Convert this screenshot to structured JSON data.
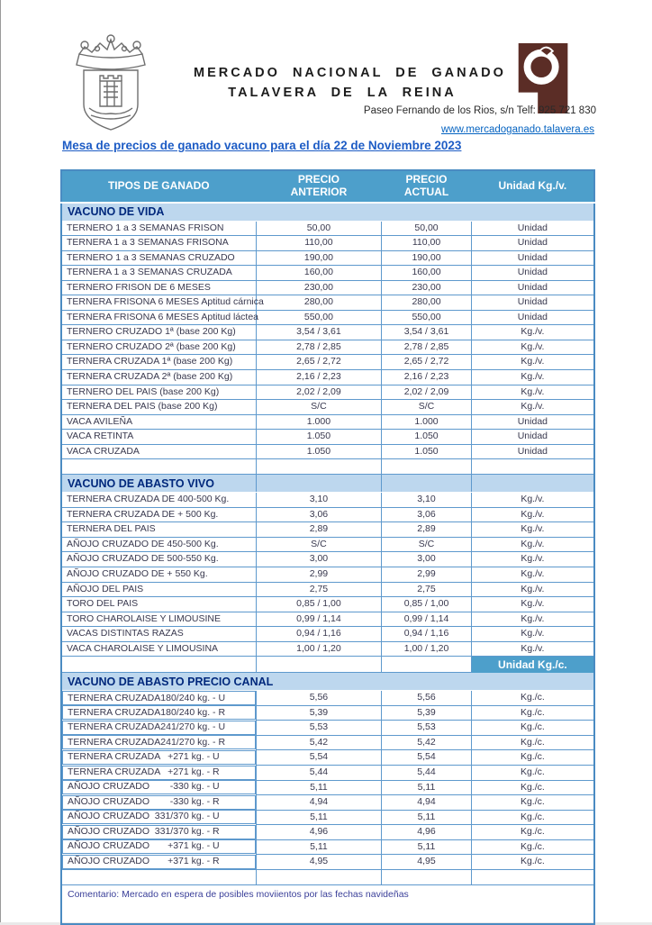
{
  "header": {
    "org_name_line1": "MERCADO NACIONAL DE GANADO",
    "org_name_line2": "TALAVERA DE LA REINA",
    "address_line": "Paseo Fernando de los Rios, s/n  Telf: 925 721 830",
    "website": "www.mercadoganado.talavera.es",
    "crest_icon": "town-coat-of-arms",
    "brand_icon": "mercado-ganado-logo",
    "brand_color": "#5b2d26"
  },
  "title": "Mesa de precios de ganado vacuno para el día 22 de Noviembre 2023",
  "table": {
    "columns": [
      "TIPOS DE GANADO",
      "PRECIO ANTERIOR",
      "PRECIO ACTUAL",
      "Unidad Kg./v."
    ],
    "unit_canal_label": "Unidad Kg./c.",
    "sections": [
      {
        "title": "VACUNO DE VIDA",
        "full_span": true,
        "footer": "spacer",
        "rows": [
          {
            "tipo": "TERNERO 1 a 3 SEMANAS FRISON",
            "anterior": "50,00",
            "actual": "50,00",
            "unidad": "Unidad"
          },
          {
            "tipo": "TERNERA 1 a 3 SEMANAS FRISONA",
            "anterior": "110,00",
            "actual": "110,00",
            "unidad": "Unidad"
          },
          {
            "tipo": "TERNERO 1 a 3 SEMANAS CRUZADO",
            "anterior": "190,00",
            "actual": "190,00",
            "unidad": "Unidad"
          },
          {
            "tipo": "TERNERA 1 a 3 SEMANAS CRUZADA",
            "anterior": "160,00",
            "actual": "160,00",
            "unidad": "Unidad"
          },
          {
            "tipo": "TERNERO FRISON  DE 6 MESES",
            "anterior": "230,00",
            "actual": "230,00",
            "unidad": "Unidad"
          },
          {
            "tipo": "TERNERA FRISONA 6 MESES Aptitud cárnica",
            "anterior": "280,00",
            "actual": "280,00",
            "unidad": "Unidad"
          },
          {
            "tipo": "TERNERA FRISONA 6 MESES Aptitud láctea",
            "anterior": "550,00",
            "actual": "550,00",
            "unidad": "Unidad"
          },
          {
            "tipo": "TERNERO CRUZADO 1ª (base 200 Kg)",
            "anterior": "3,54 / 3,61",
            "actual": "3,54 / 3,61",
            "unidad": "Kg./v."
          },
          {
            "tipo": "TERNERO CRUZADO 2ª (base 200 Kg)",
            "anterior": "2,78 / 2,85",
            "actual": "2,78 / 2,85",
            "unidad": "Kg./v."
          },
          {
            "tipo": "TERNERA CRUZADA 1ª (base 200 Kg)",
            "anterior": "2,65 / 2,72",
            "actual": "2,65 / 2,72",
            "unidad": "Kg./v."
          },
          {
            "tipo": "TERNERA CRUZADA 2ª (base 200 Kg)",
            "anterior": "2,16 / 2,23",
            "actual": "2,16 / 2,23",
            "unidad": "Kg./v."
          },
          {
            "tipo": "TERNERO DEL PAIS (base 200 Kg)",
            "anterior": "2,02 / 2,09",
            "actual": "2,02 / 2,09",
            "unidad": "Kg./v."
          },
          {
            "tipo": "TERNERA DEL PAIS (base 200 Kg)",
            "anterior": "S/C",
            "actual": "S/C",
            "unidad": "Kg./v."
          },
          {
            "tipo": "VACA AVILEÑA",
            "anterior": "1.000",
            "actual": "1.000",
            "unidad": "Unidad"
          },
          {
            "tipo": "VACA RETINTA",
            "anterior": "1.050",
            "actual": "1.050",
            "unidad": "Unidad"
          },
          {
            "tipo": "VACA CRUZADA",
            "anterior": "1.050",
            "actual": "1.050",
            "unidad": "Unidad"
          }
        ]
      },
      {
        "title": "VACUNO DE  ABASTO VIVO",
        "full_span": false,
        "footer": "unit_label",
        "rows": [
          {
            "tipo": "TERNERA CRUZADA DE 400-500 Kg.",
            "anterior": "3,10",
            "actual": "3,10",
            "unidad": "Kg./v."
          },
          {
            "tipo": "TERNERA CRUZADA DE  +  500 Kg.",
            "anterior": "3,06",
            "actual": "3,06",
            "unidad": "Kg./v."
          },
          {
            "tipo": "TERNERA DEL PAIS",
            "anterior": "2,89",
            "actual": "2,89",
            "unidad": "Kg./v."
          },
          {
            "tipo": "AÑOJO CRUZADO DE 450-500 Kg.",
            "anterior": "S/C",
            "actual": "S/C",
            "unidad": "Kg./v."
          },
          {
            "tipo": "AÑOJO CRUZADO DE 500-550 Kg.",
            "anterior": "3,00",
            "actual": "3,00",
            "unidad": "Kg./v."
          },
          {
            "tipo": "AÑOJO CRUZADO DE  + 550  Kg.",
            "anterior": "2,99",
            "actual": "2,99",
            "unidad": "Kg./v."
          },
          {
            "tipo": "AÑOJO DEL PAIS",
            "anterior": "2,75",
            "actual": "2,75",
            "unidad": "Kg./v."
          },
          {
            "tipo": "TORO DEL PAIS",
            "anterior": "0,85 / 1,00",
            "actual": "0,85 / 1,00",
            "unidad": "Kg./v."
          },
          {
            "tipo": "TORO CHAROLAISE Y LIMOUSINE",
            "anterior": "0,99 / 1,14",
            "actual": "0,99 / 1,14",
            "unidad": "Kg./v."
          },
          {
            "tipo": "VACAS DISTINTAS RAZAS",
            "anterior": "0,94 / 1,16",
            "actual": "0,94 / 1,16",
            "unidad": "Kg./v."
          },
          {
            "tipo": "VACA CHAROLAISE Y LIMOUSINA",
            "anterior": "1,00 / 1,20",
            "actual": "1,00 / 1,20",
            "unidad": "Kg./v."
          }
        ]
      },
      {
        "title": "VACUNO DE  ABASTO  PRECIO  CANAL",
        "full_span": true,
        "footer": "spacer",
        "rows": [
          {
            "tipo": "TERNERA  CRUZADA",
            "spec": "180/240 kg. - U",
            "anterior": "5,56",
            "actual": "5,56",
            "unidad": "Kg./c."
          },
          {
            "tipo": "TERNERA  CRUZADA",
            "spec": "180/240 kg. - R",
            "anterior": "5,39",
            "actual": "5,39",
            "unidad": "Kg./c."
          },
          {
            "tipo": "TERNERA  CRUZADA",
            "spec": "241/270 kg. - U",
            "anterior": "5,53",
            "actual": "5,53",
            "unidad": "Kg./c."
          },
          {
            "tipo": "TERNERA  CRUZADA",
            "spec": "241/270 kg. - R",
            "anterior": "5,42",
            "actual": "5,42",
            "unidad": "Kg./c."
          },
          {
            "tipo": "TERNERA  CRUZADA",
            "spec": "+271 kg. - U",
            "anterior": "5,54",
            "actual": "5,54",
            "unidad": "Kg./c."
          },
          {
            "tipo": "TERNERA  CRUZADA",
            "spec": "+271 kg. - R",
            "anterior": "5,44",
            "actual": "5,44",
            "unidad": "Kg./c."
          },
          {
            "tipo": "AÑOJO CRUZADO",
            "spec": "-330 kg. - U",
            "anterior": "5,11",
            "actual": "5,11",
            "unidad": "Kg./c."
          },
          {
            "tipo": "AÑOJO CRUZADO",
            "spec": "-330 kg. - R",
            "anterior": "4,94",
            "actual": "4,94",
            "unidad": "Kg./c."
          },
          {
            "tipo": "AÑOJO CRUZADO",
            "spec": "331/370 kg. - U",
            "anterior": "5,11",
            "actual": "5,11",
            "unidad": "Kg./c."
          },
          {
            "tipo": "AÑOJO CRUZADO",
            "spec": "331/370 kg. - R",
            "anterior": "4,96",
            "actual": "4,96",
            "unidad": "Kg./c."
          },
          {
            "tipo": "AÑOJO CRUZADO",
            "spec": "+371 kg. - U",
            "anterior": "5,11",
            "actual": "5,11",
            "unidad": "Kg./c."
          },
          {
            "tipo": "AÑOJO CRUZADO",
            "spec": "+371 kg. - R",
            "anterior": "4,95",
            "actual": "4,95",
            "unidad": "Kg./c."
          }
        ]
      }
    ],
    "comment": "Comentario: Mercado en espera de posibles moviientos por las fechas navideñas"
  },
  "colors": {
    "header_band": "#4d9fcb",
    "section_band": "#bdd7ee",
    "section_text": "#00287c",
    "table_border": "#4a8bc2",
    "title_blue": "#1d5cc5",
    "link_blue": "#0563c1"
  }
}
